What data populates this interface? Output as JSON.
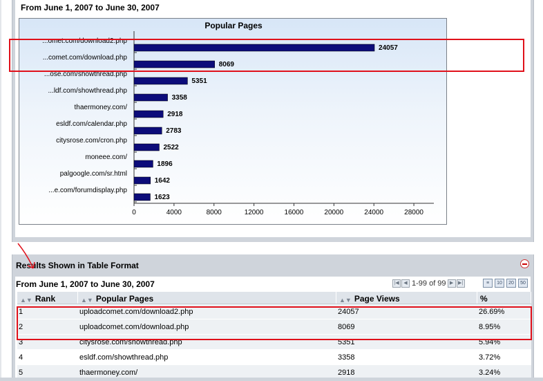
{
  "top_range": "From June  1, 2007 to June  30, 2007",
  "chart_data": {
    "type": "bar",
    "orientation": "horizontal",
    "title": "Popular Pages",
    "categories": [
      "...omet.com/download2.php",
      "...comet.com/download.php",
      "...ose.com/showthread.php",
      "...ldf.com/showthread.php",
      "thaermoney.com/",
      "esldf.com/calendar.php",
      "citysrose.com/cron.php",
      "moneee.com/",
      "palgoogle.com/sr.html",
      "...e.com/forumdisplay.php"
    ],
    "values": [
      24057,
      8069,
      5351,
      3358,
      2918,
      2783,
      2522,
      1896,
      1642,
      1623
    ],
    "value_labels": [
      "24057",
      "8069",
      "5351",
      "3358",
      "2918",
      "2783",
      "2522",
      "1896",
      "1642",
      "1623"
    ],
    "xlim": [
      0,
      30000
    ],
    "x_ticks": [
      "0",
      "4000",
      "8000",
      "12000",
      "16000",
      "20000",
      "24000",
      "28000"
    ],
    "bar_color": "#0c0c7a"
  },
  "table_panel": {
    "title": "Results Shown in Table Format",
    "range": "From June  1, 2007 to June  30, 2007",
    "pager_text": "1-99 of 99",
    "columns": [
      "Rank",
      "Popular Pages",
      "Page Views",
      "%"
    ],
    "rows": [
      {
        "rank": "1",
        "page": "uploadcomet.com/download2.php",
        "views": "24057",
        "pct": "26.69%"
      },
      {
        "rank": "2",
        "page": "uploadcomet.com/download.php",
        "views": "8069",
        "pct": "8.95%"
      },
      {
        "rank": "3",
        "page": "citysrose.com/showthread.php",
        "views": "5351",
        "pct": "5.94%"
      },
      {
        "rank": "4",
        "page": "esldf.com/showthread.php",
        "views": "3358",
        "pct": "3.72%"
      },
      {
        "rank": "5",
        "page": "thaermoney.com/",
        "views": "2918",
        "pct": "3.24%"
      }
    ]
  },
  "colors": {
    "highlight": "#e0101a",
    "panel_bg": "#cfd4db",
    "bar": "#0c0c7a"
  }
}
